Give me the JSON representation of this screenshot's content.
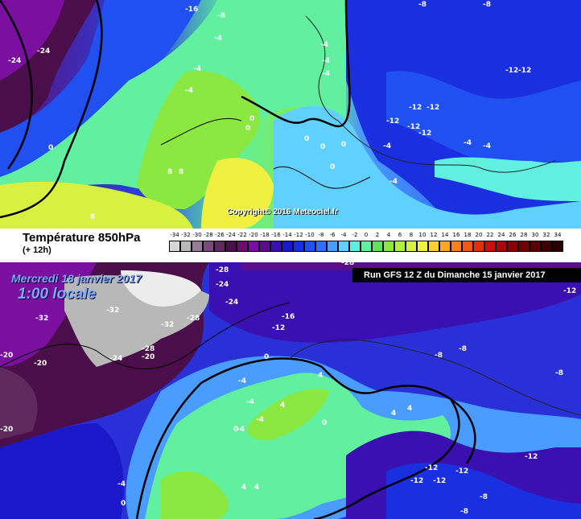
{
  "legend": {
    "title": "Température 850hPa",
    "subtitle": "(+ 12h)",
    "scale": [
      "-34",
      "-32",
      "-30",
      "-28",
      "-26",
      "-24",
      "-22",
      "-20",
      "-18",
      "-16",
      "-14",
      "-12",
      "-10",
      "-8",
      "-6",
      "-4",
      "-2",
      "0",
      "2",
      "4",
      "6",
      "8",
      "10",
      "12",
      "14",
      "16",
      "18",
      "20",
      "22",
      "24",
      "26",
      "28",
      "30",
      "32",
      "34"
    ],
    "colors": [
      "#d8d8d8",
      "#b8b8b8",
      "#9a7a9a",
      "#7a4a7a",
      "#5e2a5e",
      "#4a0f4a",
      "#6a0f6a",
      "#7a0fa0",
      "#5a0f8a",
      "#3a10b0",
      "#1a18c8",
      "#1a30e0",
      "#2050f0",
      "#3070ff",
      "#4a9cff",
      "#60d0ff",
      "#60f0e0",
      "#60f0a0",
      "#60e060",
      "#8ae840",
      "#b0f040",
      "#d8f040",
      "#f0f040",
      "#f8d030",
      "#f8a828",
      "#f88020",
      "#f05818",
      "#e03010",
      "#c81010",
      "#a80808",
      "#880000",
      "#700000",
      "#580000",
      "#400000",
      "#280000"
    ]
  },
  "top_map": {
    "copyright": "Copyright© 2016 Meteociel.fr",
    "labels": [
      "-16",
      "-8",
      "-24",
      "-24",
      "-4",
      "-4",
      "-4",
      "-8",
      "-8",
      "-4",
      "-4",
      "-4",
      "-12",
      "-12",
      "-12",
      "-12",
      "-12",
      "-12",
      "-12",
      "0",
      "0",
      "0",
      "0",
      "0",
      "0",
      "0",
      "-4",
      "-4",
      "-4",
      "-4",
      "8",
      "8",
      "8"
    ]
  },
  "bottom_map": {
    "date": "Mercredi 18 janvier 2017",
    "time": "1:00 locale",
    "run": "Run GFS 12 Z du Dimanche 15 janvier 2017",
    "labels": [
      "-28",
      "-28",
      "-24",
      "-24",
      "-32",
      "-32",
      "-32",
      "-28",
      "-28",
      "-24",
      "-20",
      "-20",
      "-20",
      "-20",
      "-16",
      "-12",
      "-12",
      "-12",
      "-12",
      "-12",
      "-12",
      "-12",
      "-8",
      "-8",
      "-8",
      "-8",
      "-8",
      "-4",
      "-4",
      "-4",
      "-4",
      "-4",
      "0",
      "0",
      "0",
      "0",
      "4",
      "4",
      "4",
      "4",
      "4",
      "4"
    ]
  }
}
